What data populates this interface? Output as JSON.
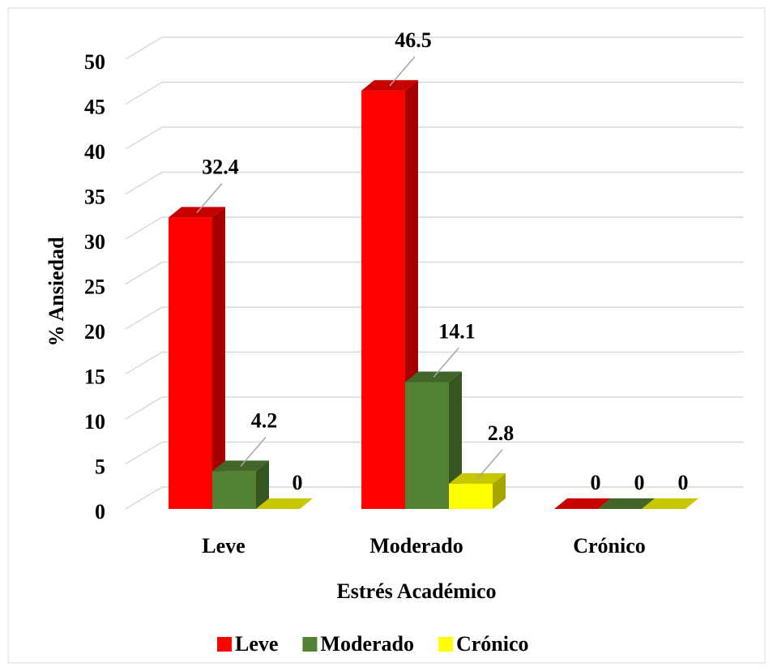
{
  "chart_data": {
    "type": "bar3d",
    "x_label": "Estrés Académico",
    "y_label": "% Ansiedad",
    "categories": [
      "Leve",
      "Moderado",
      "Crónico"
    ],
    "series": [
      {
        "name": "Leve",
        "color": "#ff0000",
        "values": [
          32.4,
          46.5,
          0
        ]
      },
      {
        "name": "Moderado",
        "color": "#548235",
        "values": [
          4.2,
          14.1,
          0
        ]
      },
      {
        "name": "Crónico",
        "color": "#ffff00",
        "values": [
          0,
          2.8,
          0
        ]
      }
    ],
    "ylim": [
      0,
      50
    ],
    "yticks": [
      0,
      5,
      10,
      15,
      20,
      25,
      30,
      35,
      40,
      45,
      50
    ],
    "grid": true,
    "legend": "bottom"
  }
}
